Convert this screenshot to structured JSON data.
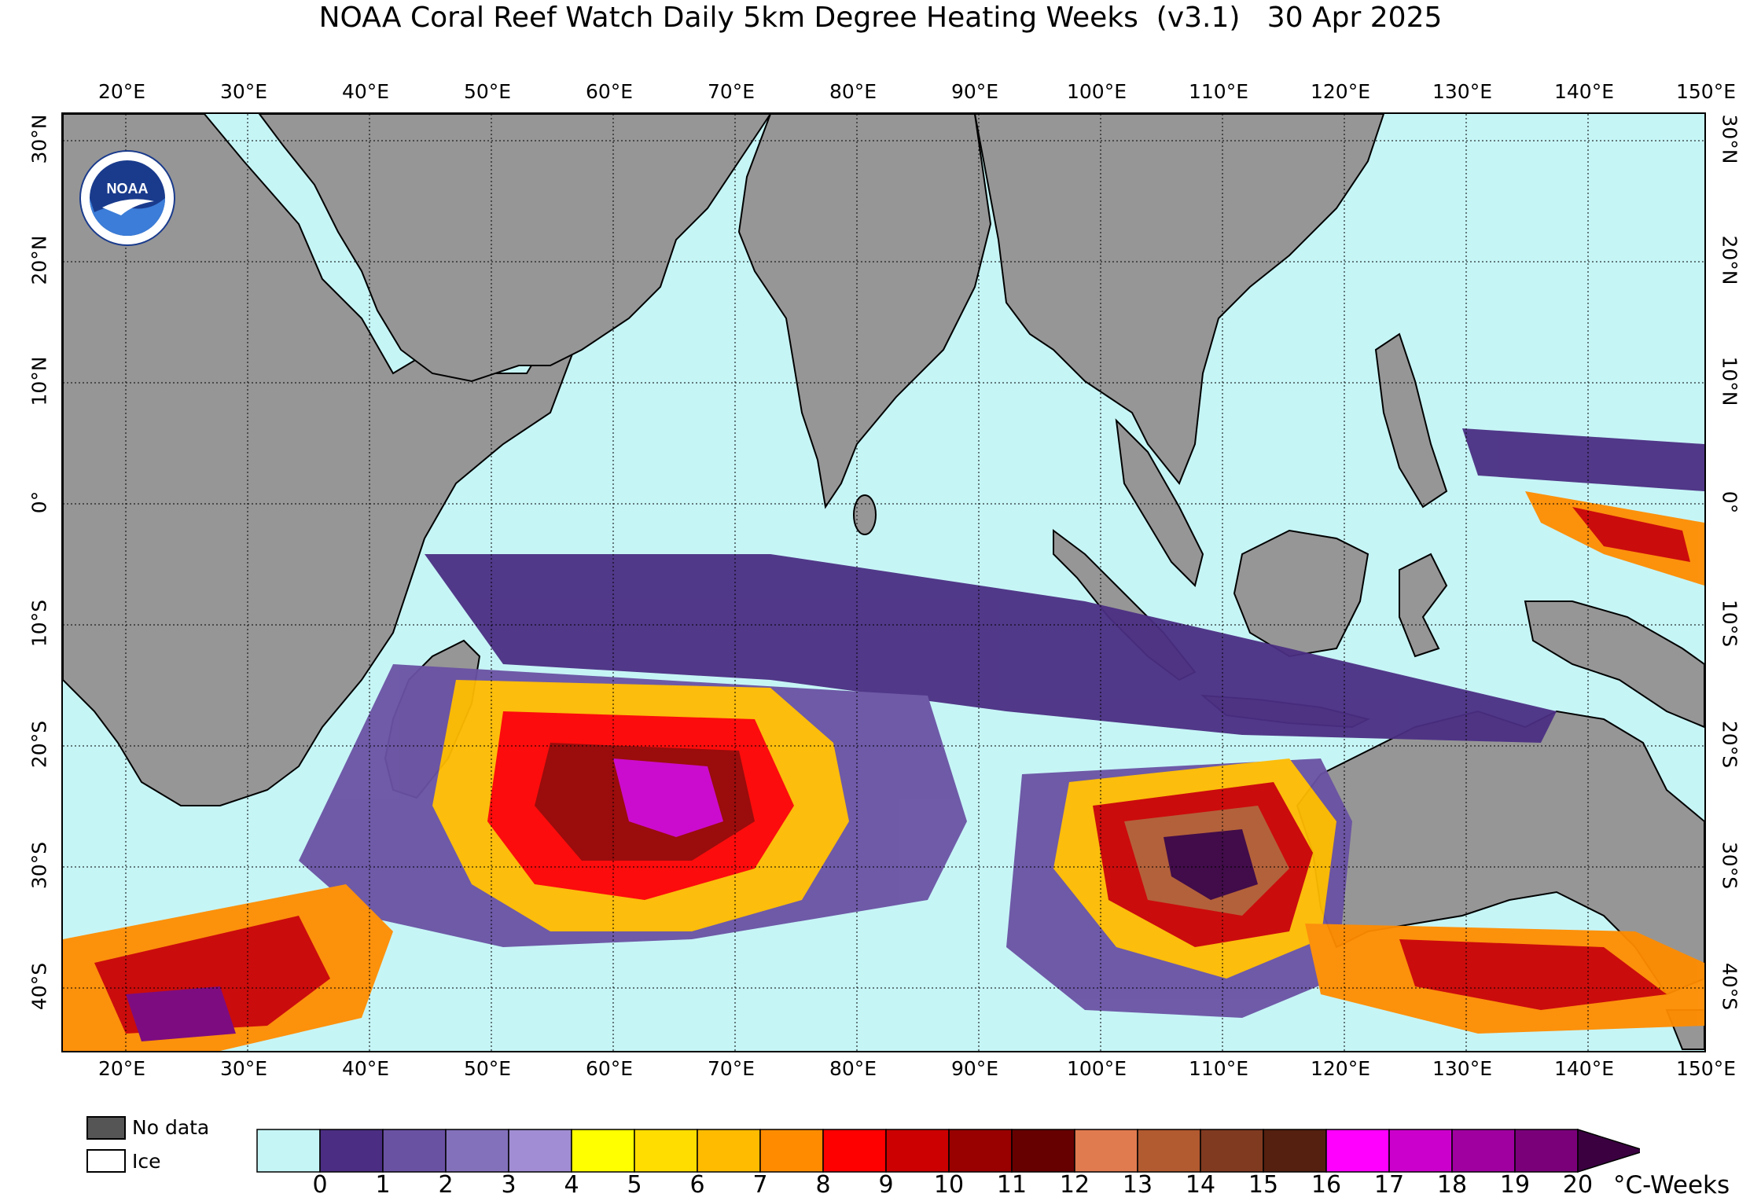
{
  "title": "NOAA Coral Reef Watch Daily 5km Degree Heating Weeks  (v3.1)   30 Apr 2025",
  "longitude_labels": [
    "20°E",
    "30°E",
    "40°E",
    "50°E",
    "60°E",
    "70°E",
    "80°E",
    "90°E",
    "100°E",
    "110°E",
    "120°E",
    "130°E",
    "140°E",
    "150°E"
  ],
  "latitude_labels": [
    "30°N",
    "20°N",
    "10°N",
    "0°",
    "10°S",
    "20°S",
    "30°S",
    "40°S"
  ],
  "legend": {
    "no_data_label": "No data",
    "ice_label": "Ice"
  },
  "colorbar": {
    "ticks": [
      "0",
      "1",
      "2",
      "3",
      "4",
      "5",
      "6",
      "7",
      "8",
      "9",
      "10",
      "11",
      "12",
      "13",
      "14",
      "15",
      "16",
      "17",
      "18",
      "19",
      "20"
    ],
    "units": "°C-Weeks",
    "colors": [
      "#c6f5f6",
      "#4b2e83",
      "#6a52a3",
      "#8471bc",
      "#a08dd3",
      "#ffff00",
      "#ffdd00",
      "#ffbb00",
      "#ff8c00",
      "#ff0000",
      "#cc0000",
      "#990000",
      "#660000",
      "#e07b50",
      "#b25a30",
      "#803a20",
      "#552010",
      "#ff00ff",
      "#cc00cc",
      "#a000a0",
      "#7a007a",
      "#3a0040"
    ]
  },
  "map_colors": {
    "land": "#969696",
    "ocean_zero": "#c6f5f6",
    "logo_blue": "#1a3b8c",
    "logo_light": "#3b7dd8"
  },
  "logo_text": "NOAA"
}
